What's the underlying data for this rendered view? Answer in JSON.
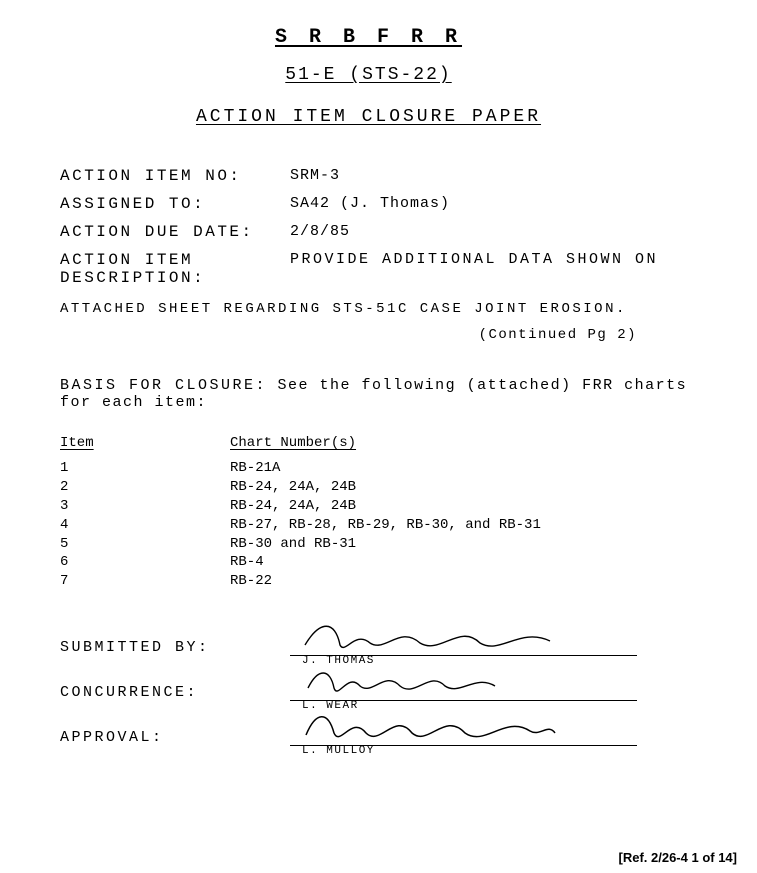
{
  "header": {
    "line1": "S R B   F R R",
    "line2": "51-E  (STS-22)",
    "line3": "ACTION  ITEM  CLOSURE  PAPER"
  },
  "fields": {
    "action_item_no_label": "ACTION  ITEM  NO:",
    "action_item_no": "SRM-3",
    "assigned_to_label": "ASSIGNED  TO:",
    "assigned_to": "SA42 (J. Thomas)",
    "due_date_label": "ACTION  DUE  DATE:",
    "due_date": "2/8/85",
    "description_label": "ACTION ITEM DESCRIPTION:",
    "description": "PROVIDE ADDITIONAL DATA SHOWN ON",
    "description_cont": "ATTACHED SHEET REGARDING STS-51C  CASE JOINT EROSION.",
    "continued": "(Continued Pg 2)"
  },
  "basis": {
    "label": "BASIS FOR CLOSURE:",
    "text": "See the following (attached) FRR charts for each item:",
    "col1": "Item",
    "col2": "Chart Number(s)",
    "rows": [
      {
        "item": "1",
        "charts": "RB-21A"
      },
      {
        "item": "2",
        "charts": "RB-24, 24A, 24B"
      },
      {
        "item": "3",
        "charts": "RB-24, 24A, 24B"
      },
      {
        "item": "4",
        "charts": "RB-27, RB-28, RB-29, RB-30, and RB-31"
      },
      {
        "item": "5",
        "charts": "RB-30 and RB-31"
      },
      {
        "item": "6",
        "charts": "RB-4"
      },
      {
        "item": "7",
        "charts": "RB-22"
      }
    ]
  },
  "signatures": {
    "submitted_label": "SUBMITTED  BY:",
    "submitted_name": "J. THOMAS",
    "concurrence_label": "CONCURRENCE:",
    "concurrence_name": "L. WEAR",
    "approval_label": "APPROVAL:",
    "approval_name": "L. MULLOY"
  },
  "reference": "[Ref. 2/26-4 1 of 14]"
}
